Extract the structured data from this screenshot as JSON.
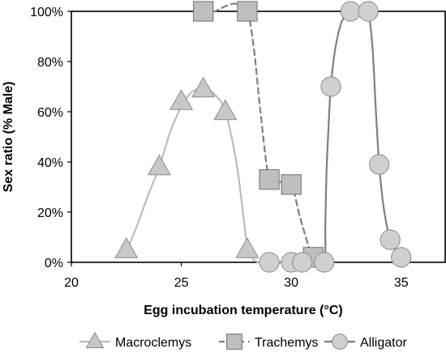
{
  "chart_data": {
    "type": "line",
    "xlabel": "Egg incubation temperature (°C)",
    "ylabel": "Sex ratio (% Male)",
    "xlim": [
      20,
      37
    ],
    "ylim": [
      0,
      100
    ],
    "xticks": [
      20,
      25,
      30,
      35
    ],
    "yticks": [
      0,
      20,
      40,
      60,
      80,
      100
    ],
    "xtick_labels": [
      "20",
      "25",
      "30",
      "35"
    ],
    "ytick_labels": [
      "0%",
      "20%",
      "40%",
      "60%",
      "80%",
      "100%"
    ],
    "grid": false,
    "legend_position": "bottom",
    "series": [
      {
        "name": "Macroclemys",
        "marker": "triangle",
        "line": "solid",
        "color": "#bdbdbd",
        "marker_color": "#c8c8c8",
        "x": [
          22.5,
          24.0,
          25.0,
          26.0,
          27.0,
          28.0
        ],
        "y": [
          5,
          38,
          64,
          69,
          60,
          5
        ],
        "curve_x": [
          22.5,
          23.0,
          23.5,
          24.0,
          24.5,
          25.0,
          25.5,
          26.0,
          26.5,
          27.0,
          27.5,
          27.8,
          28.0,
          28.3,
          28.7,
          29.0
        ],
        "curve_y": [
          4,
          15,
          27,
          38,
          52,
          62,
          68,
          69,
          67,
          60,
          40,
          20,
          7,
          1,
          0,
          0
        ]
      },
      {
        "name": "Trachemys",
        "marker": "square",
        "line": "dashed",
        "color": "#7f7f7f",
        "marker_color": "#bfbfbf",
        "x": [
          26.0,
          28.0,
          29.0,
          30.0,
          31.0
        ],
        "y": [
          100,
          100,
          33,
          31,
          2
        ],
        "curve_x": [
          26.0,
          26.5,
          27.0,
          27.5,
          28.0,
          28.3,
          28.6,
          29.0,
          29.5,
          30.0,
          30.4,
          30.8,
          31.0
        ],
        "curve_y": [
          100,
          100,
          102,
          103,
          100,
          85,
          60,
          33,
          32,
          31,
          18,
          6,
          2
        ]
      },
      {
        "name": "Alligator",
        "marker": "circle",
        "line": "solid",
        "color": "#7f7f7f",
        "marker_color": "#d0d0d0",
        "x": [
          29.0,
          30.0,
          30.5,
          31.5,
          31.8,
          32.7,
          33.5,
          34.0,
          34.5,
          35.0
        ],
        "y": [
          0,
          0,
          0,
          0,
          70,
          100,
          100,
          39,
          9,
          2
        ],
        "curve_x": [
          29.0,
          29.5,
          30.0,
          30.5,
          31.0,
          31.5,
          31.55,
          31.6,
          31.7,
          31.8,
          32.0,
          32.3,
          32.7,
          33.0,
          33.3,
          33.5,
          33.7,
          33.85,
          34.0,
          34.2,
          34.5,
          34.8,
          35.0
        ],
        "curve_y": [
          0,
          0,
          0,
          0,
          0,
          0,
          15,
          35,
          55,
          70,
          85,
          96,
          100,
          101,
          101,
          100,
          85,
          60,
          39,
          22,
          9,
          4,
          2
        ]
      }
    ]
  }
}
